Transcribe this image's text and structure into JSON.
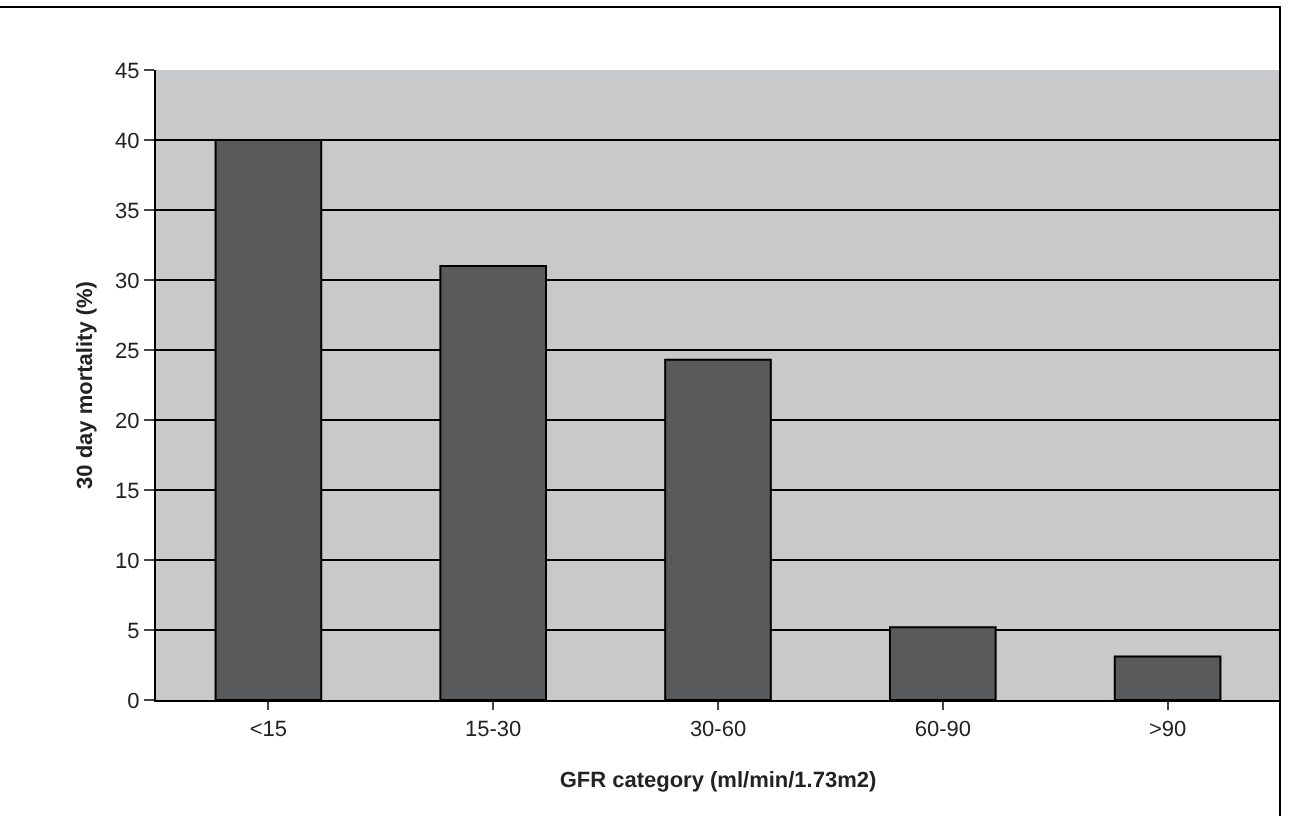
{
  "chart_data": {
    "type": "bar",
    "xlabel": "GFR category (ml/min/1.73m2)",
    "ylabel": "30 day mortality (%)",
    "categories": [
      "<15",
      "15-30",
      "30-60",
      "60-90",
      ">90"
    ],
    "values": [
      40,
      31,
      24.3,
      5.2,
      3.1
    ],
    "color": "#595a5c",
    "ylim": [
      0,
      45
    ],
    "yticks": [
      0,
      5,
      10,
      15,
      20,
      25,
      30,
      35,
      40,
      45
    ],
    "grid": "y",
    "legend": false
  }
}
